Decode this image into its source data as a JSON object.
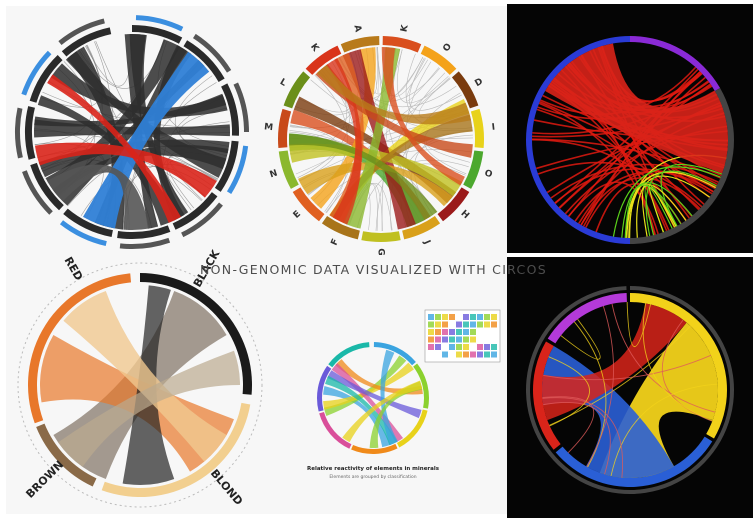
{
  "headline": "NON-GENOMIC DATA VISUALIZED WITH CIRCOS",
  "panels": [
    {
      "id": "genomic-style-circos",
      "segments": []
    },
    {
      "id": "letters-circos",
      "segments": [
        "K",
        "O",
        "D",
        "I",
        "O",
        "H",
        "J",
        "G",
        "F",
        "E",
        "N",
        "M",
        "L",
        "K",
        "A"
      ]
    },
    {
      "id": "red-black-circos",
      "segments": []
    },
    {
      "id": "hair-color-circos",
      "segments": [
        "RED",
        "BLACK",
        "BLOND",
        "BROWN"
      ]
    },
    {
      "id": "elements-circos",
      "caption": "Relative reactivity of elements in minerals",
      "subcaption": "Elements are grouped by classification"
    },
    {
      "id": "dark-regions-circos",
      "segments": []
    }
  ],
  "colors": {
    "page_bg": "#f6f6f6",
    "dark_bg": "#050505",
    "headline": "#4d4d4d",
    "accent_red": "#d9241a",
    "accent_blue": "#2f7fd6",
    "accent_yellow": "#f2d21a",
    "accent_orange": "#e8772a"
  }
}
